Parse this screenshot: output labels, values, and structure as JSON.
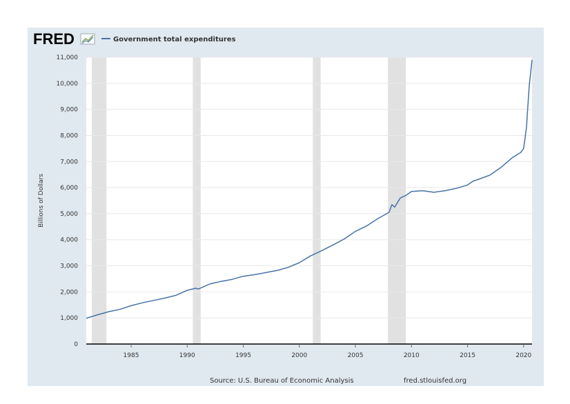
{
  "logo": {
    "text": "FRED"
  },
  "footer": {
    "source": "Source: U.S. Bureau of Economic Analysis",
    "site": "fred.stlouisfed.org"
  },
  "colors": {
    "series": "#4572a7",
    "background": "#e1e9f0",
    "plot": "#ffffff",
    "recession": "#e1e1e1",
    "grid": "#e8e8e8"
  },
  "chart_data": {
    "type": "line",
    "title": "",
    "xlabel": "",
    "ylabel": "Billions of Dollars",
    "xlim": [
      1981.0,
      2020.75
    ],
    "ylim": [
      0,
      11000
    ],
    "xticks": [
      1985,
      1990,
      1995,
      2000,
      2005,
      2010,
      2015,
      2020
    ],
    "yticks": [
      0,
      1000,
      2000,
      3000,
      4000,
      5000,
      6000,
      7000,
      8000,
      9000,
      10000,
      11000
    ],
    "ytick_labels": [
      "0",
      "1,000",
      "2,000",
      "3,000",
      "4,000",
      "5,000",
      "6,000",
      "7,000",
      "8,000",
      "9,000",
      "10,000",
      "11,000"
    ],
    "grid": true,
    "legend": "top-left",
    "recessions": [
      [
        1981.5,
        1982.8
      ],
      [
        1990.5,
        1991.2
      ],
      [
        2001.2,
        2001.9
      ],
      [
        2007.9,
        2009.5
      ]
    ],
    "series": [
      {
        "name": "Government total expenditures",
        "color": "#4572a7",
        "x": [
          1981.0,
          1982.0,
          1983.0,
          1984.0,
          1985.0,
          1986.0,
          1987.0,
          1988.0,
          1989.0,
          1990.0,
          1990.75,
          1991.0,
          1992.0,
          1993.0,
          1994.0,
          1995.0,
          1996.0,
          1997.0,
          1998.0,
          1999.0,
          2000.0,
          2001.0,
          2002.0,
          2003.0,
          2004.0,
          2005.0,
          2006.0,
          2007.0,
          2008.0,
          2008.25,
          2008.5,
          2009.0,
          2009.5,
          2010.0,
          2011.0,
          2012.0,
          2013.0,
          2014.0,
          2015.0,
          2015.5,
          2016.0,
          2017.0,
          2018.0,
          2019.0,
          2019.75,
          2020.0,
          2020.25,
          2020.5,
          2020.75
        ],
        "y": [
          990,
          1120,
          1240,
          1330,
          1470,
          1580,
          1670,
          1760,
          1870,
          2060,
          2140,
          2110,
          2300,
          2400,
          2480,
          2600,
          2660,
          2740,
          2820,
          2940,
          3120,
          3380,
          3580,
          3800,
          4030,
          4320,
          4530,
          4810,
          5050,
          5350,
          5250,
          5600,
          5700,
          5850,
          5880,
          5820,
          5880,
          5970,
          6100,
          6250,
          6320,
          6480,
          6780,
          7150,
          7350,
          7500,
          8300,
          9900,
          10900
        ]
      }
    ]
  }
}
